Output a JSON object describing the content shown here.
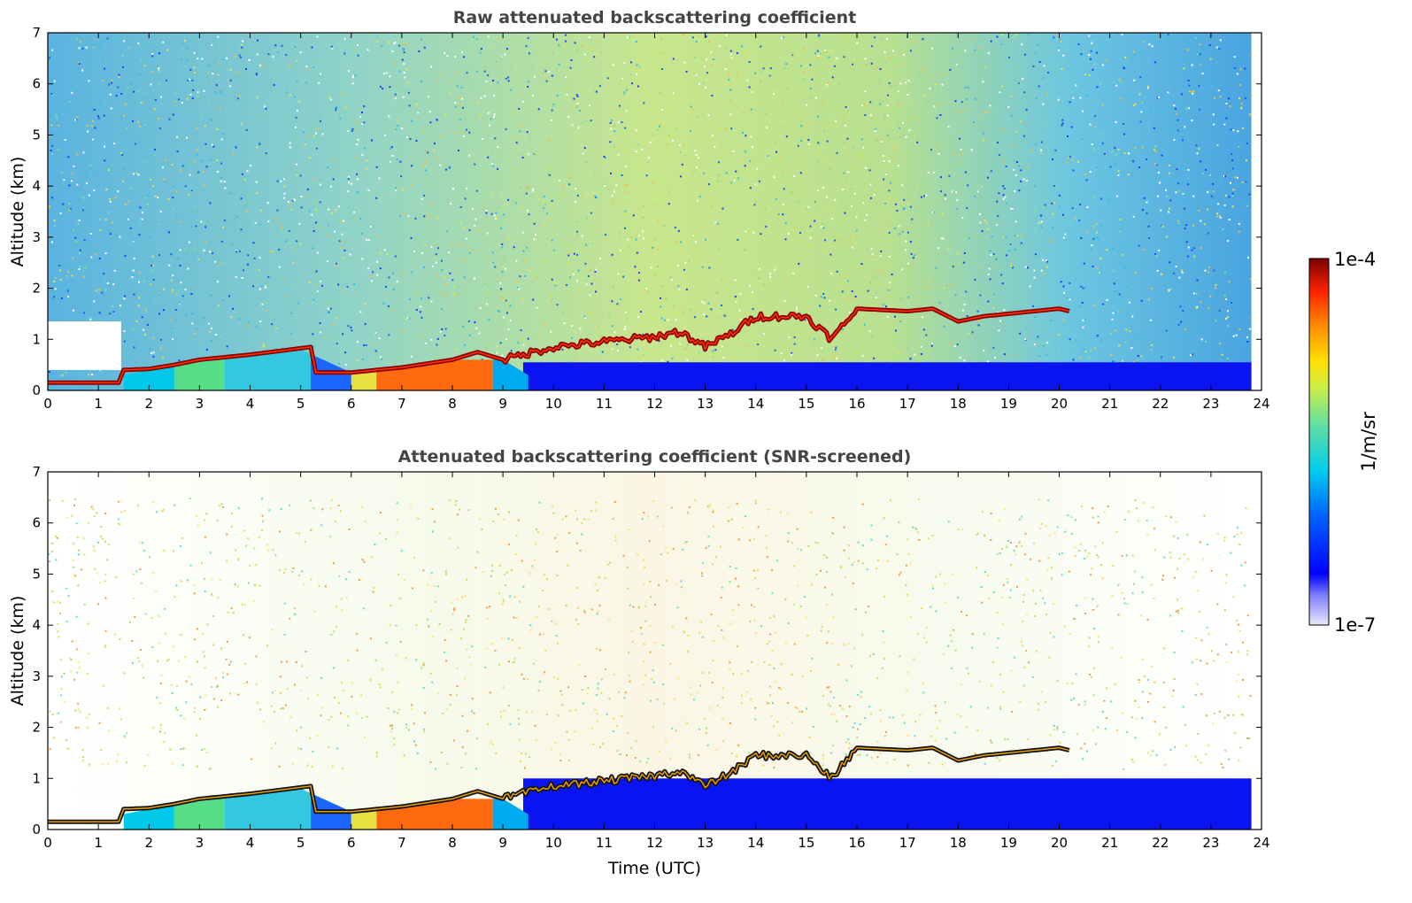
{
  "chart_data": [
    {
      "type": "heatmap",
      "title": "Raw attenuated backscattering coefficient",
      "xlabel": "",
      "ylabel": "Altitude (km)",
      "xlim": [
        0,
        24
      ],
      "ylim": [
        0,
        7
      ],
      "xticks": [
        0,
        1,
        2,
        3,
        4,
        5,
        6,
        7,
        8,
        9,
        10,
        11,
        12,
        13,
        14,
        15,
        16,
        17,
        18,
        19,
        20,
        21,
        22,
        23,
        24
      ],
      "yticks": [
        0,
        1,
        2,
        3,
        4,
        5,
        6,
        7
      ],
      "cloud_layer": {
        "description": "boundary-layer top / cloud base (altitude km vs time UTC)",
        "x": [
          0,
          1.4,
          1.5,
          2.0,
          2.5,
          3.0,
          4.0,
          5.2,
          5.3,
          6.0,
          7.0,
          8.0,
          8.5,
          9.0,
          10.0,
          11.0,
          12.0,
          12.5,
          13.0,
          13.5,
          14.0,
          15.0,
          15.5,
          16.0,
          17.0,
          17.5,
          18.0,
          18.5,
          19.0,
          20.0,
          20.2
        ],
        "y": [
          0.15,
          0.15,
          0.4,
          0.42,
          0.5,
          0.6,
          0.7,
          0.85,
          0.35,
          0.35,
          0.45,
          0.6,
          0.75,
          0.6,
          0.85,
          0.95,
          1.05,
          1.15,
          0.85,
          1.1,
          1.45,
          1.45,
          1.0,
          1.6,
          1.55,
          1.6,
          1.35,
          1.45,
          1.5,
          1.6,
          1.55
        ]
      },
      "aerosol_layer": {
        "description": "strong low-level aerosol return, top altitude (km) vs time",
        "x": [
          1.5,
          2.0,
          3.0,
          4.0,
          5.0,
          6.0,
          7.0,
          8.0,
          9.0,
          9.5
        ],
        "y": [
          0.3,
          0.4,
          0.55,
          0.7,
          0.8,
          0.35,
          0.45,
          0.6,
          0.6,
          0.3
        ]
      }
    },
    {
      "type": "heatmap",
      "title": "Attenuated backscattering coefficient (SNR-screened)",
      "xlabel": "Time (UTC)",
      "ylabel": "Altitude (km)",
      "xlim": [
        0,
        24
      ],
      "ylim": [
        0,
        7
      ],
      "xticks": [
        0,
        1,
        2,
        3,
        4,
        5,
        6,
        7,
        8,
        9,
        10,
        11,
        12,
        13,
        14,
        15,
        16,
        17,
        18,
        19,
        20,
        21,
        22,
        23,
        24
      ],
      "yticks": [
        0,
        1,
        2,
        3,
        4,
        5,
        6,
        7
      ]
    }
  ],
  "colorbar": {
    "label": "1/m/sr",
    "max_label": "1e-4",
    "min_label": "1e-7",
    "scale": "log",
    "colormap": "jet",
    "colors": [
      "#e8e8f8",
      "#0000ff",
      "#00aaff",
      "#00e5e5",
      "#9be564",
      "#ffeb00",
      "#ff8800",
      "#ff2200",
      "#7a0000"
    ]
  }
}
